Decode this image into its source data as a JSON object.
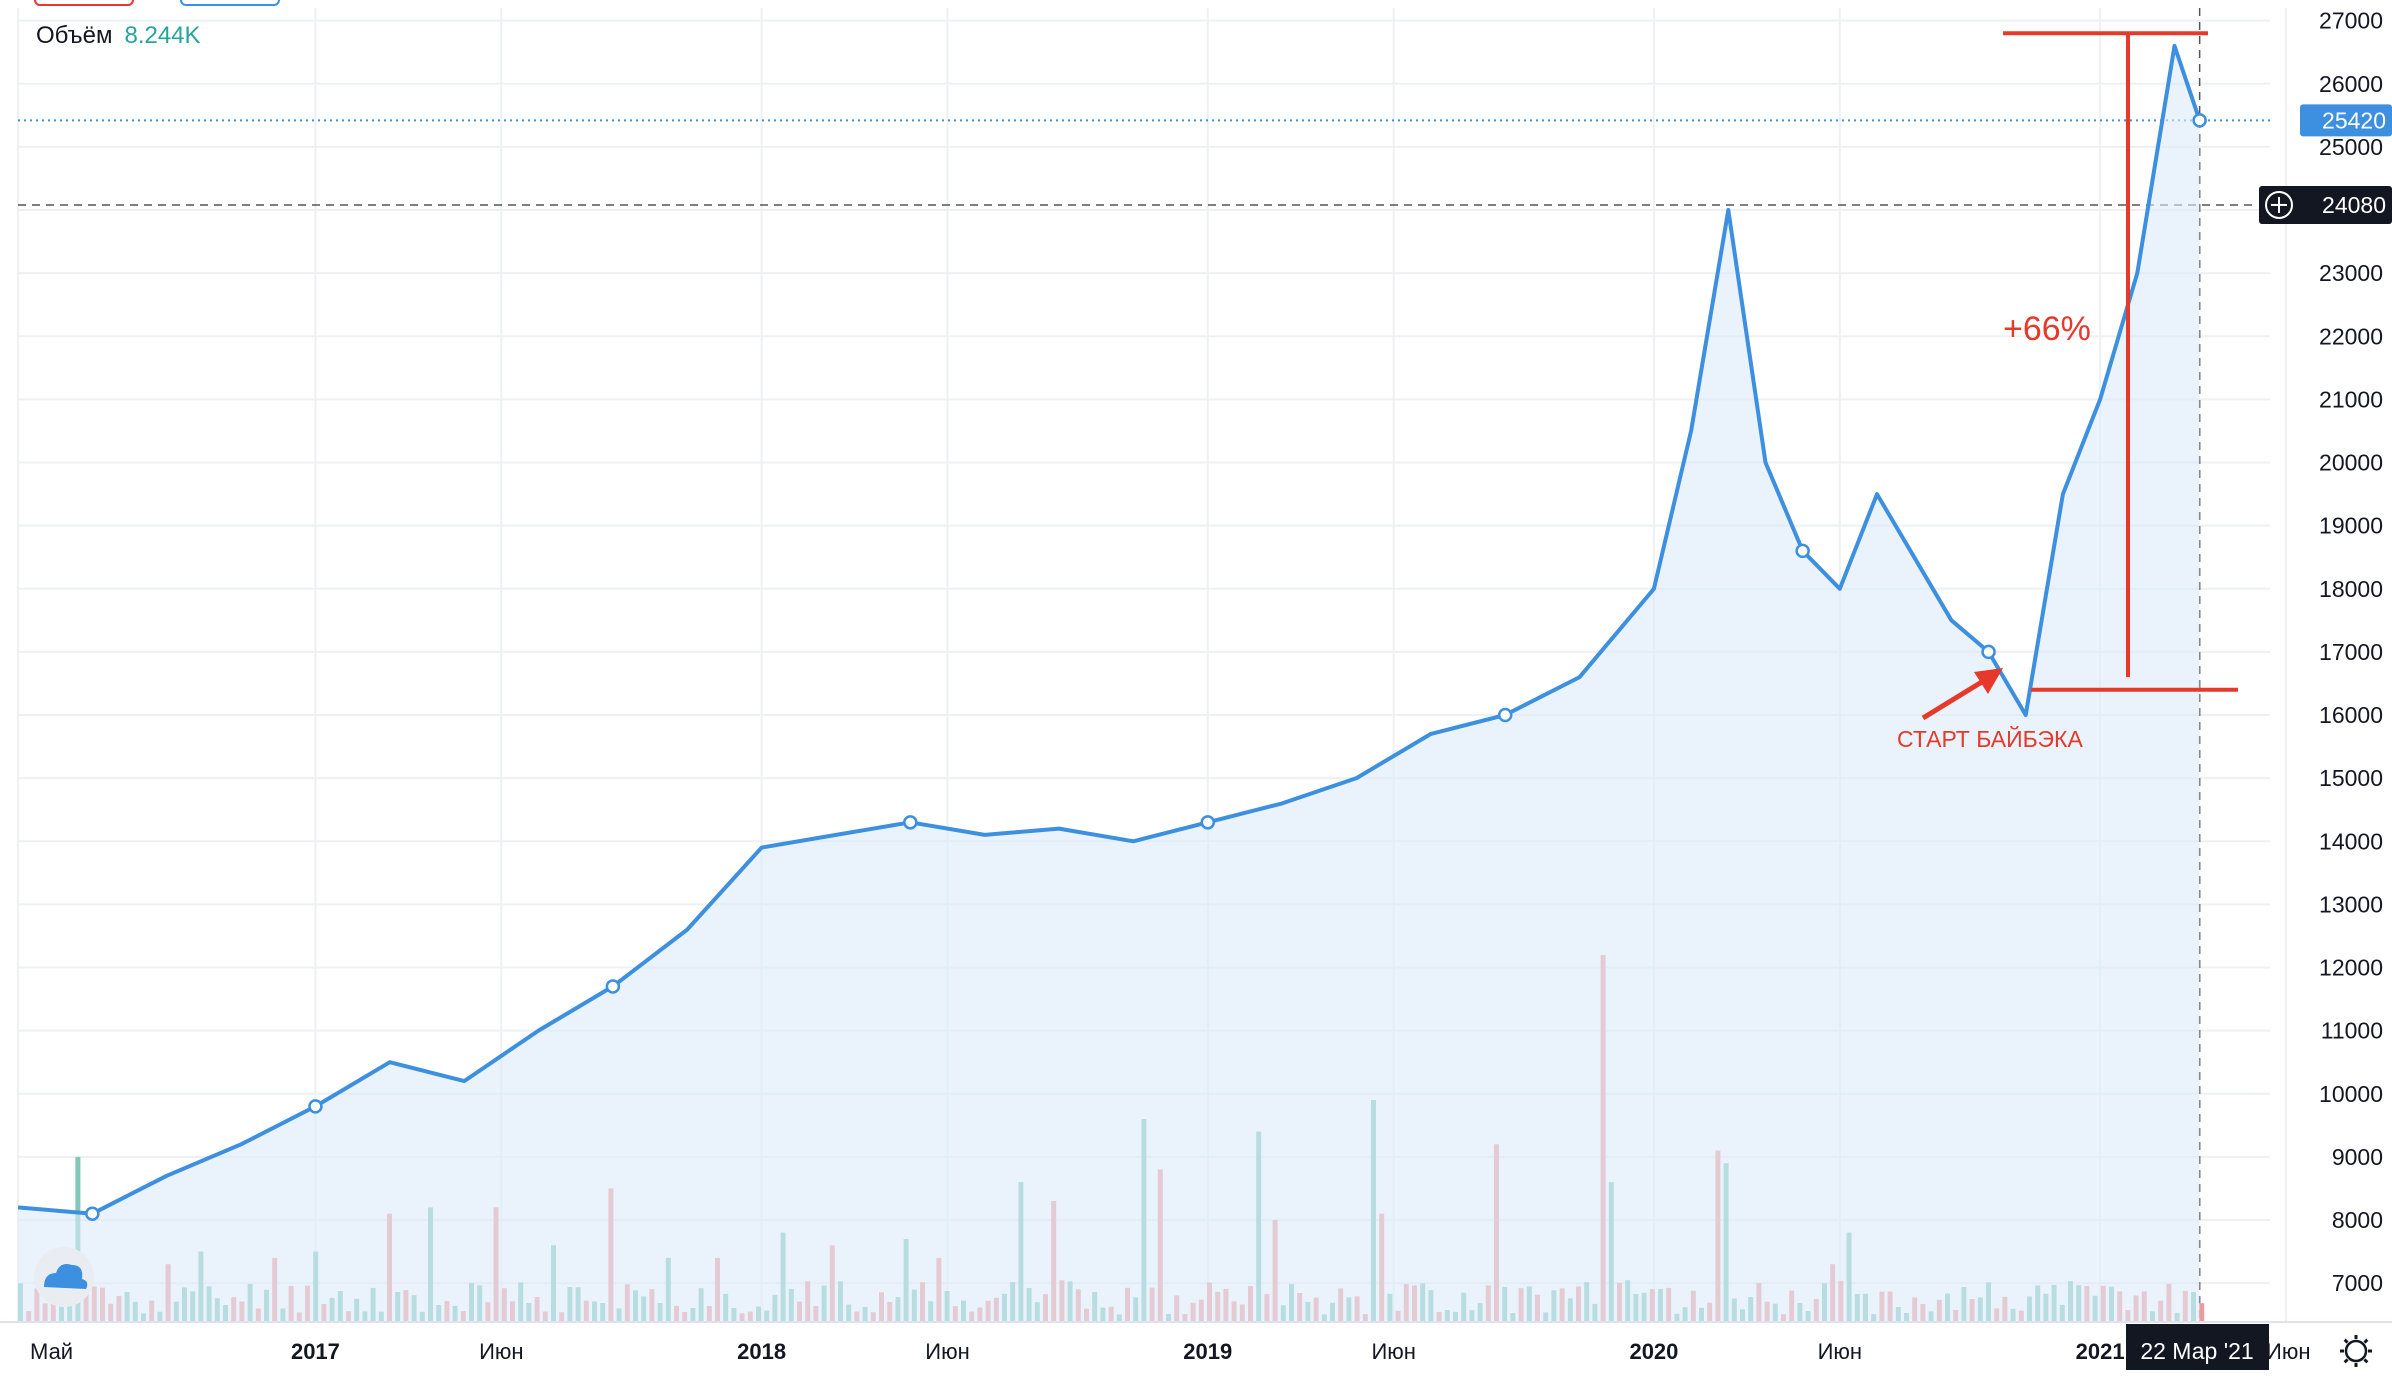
{
  "legend": {
    "volume_label": "Объём",
    "volume_value": "8.244K"
  },
  "price_tags": {
    "last_price": "25420",
    "crosshair_price": "24080"
  },
  "crosshair_date": "22 Мар '21",
  "annotations": {
    "gain_label": "+66%",
    "start_label": "СТАРТ БАЙБЭКА"
  },
  "icons": {
    "crosshair_plus": "plus-circle-icon",
    "settings": "gear-icon",
    "logo": "tradingview-cloud-icon"
  },
  "colors": {
    "line": "#3d8fe0",
    "area": "#dcebfa",
    "vol_up": "#82c7b8",
    "vol_down": "#ef9a9a",
    "annotation": "#e5392a",
    "last_tag": "#3d8fe0",
    "dark_tag": "#131722"
  },
  "chart_data": {
    "type": "area",
    "ylim": [
      6400,
      27200
    ],
    "yticks": [
      7000,
      8000,
      9000,
      10000,
      11000,
      12000,
      13000,
      14000,
      15000,
      16000,
      17000,
      18000,
      19000,
      20000,
      21000,
      22000,
      23000,
      24000,
      25000,
      26000,
      27000
    ],
    "xtick_labels": [
      "Май",
      "2017",
      "Июн",
      "2018",
      "Июн",
      "2019",
      "Июн",
      "2020",
      "Июн",
      "2021",
      "Июн"
    ],
    "x_dates": [
      "2016-05",
      "2016-07",
      "2016-09",
      "2016-11",
      "2017-01",
      "2017-03",
      "2017-05",
      "2017-07",
      "2017-09",
      "2017-11",
      "2018-01",
      "2018-03",
      "2018-05",
      "2018-07",
      "2018-09",
      "2018-11",
      "2019-01",
      "2019-03",
      "2019-05",
      "2019-07",
      "2019-09",
      "2019-11",
      "2020-01",
      "2020-02",
      "2020-03",
      "2020-04",
      "2020-05",
      "2020-06",
      "2020-07",
      "2020-08",
      "2020-09",
      "2020-10",
      "2020-11",
      "2020-12",
      "2021-01",
      "2021-02",
      "2021-03",
      "2021-03-22"
    ],
    "series": [
      {
        "values": [
          8200,
          8100,
          8700,
          9200,
          9800,
          10500,
          10200,
          11000,
          11700,
          12600,
          13900,
          14100,
          14300,
          14100,
          14200,
          14000,
          14300,
          14600,
          15000,
          15700,
          16000,
          16600,
          18000,
          20500,
          24000,
          20000,
          18600,
          18000,
          19500,
          18500,
          17500,
          17000,
          16000,
          19500,
          21000,
          23000,
          26600,
          25420
        ]
      }
    ],
    "volume_visible_range": [
      6400,
      12000
    ],
    "volume": {
      "up": [
        9000,
        7500,
        7500,
        8200,
        7600,
        7400,
        7800,
        7700,
        8600,
        9600,
        9400,
        9900,
        12100,
        8600,
        8900,
        7800
      ],
      "down": [
        7200,
        7300,
        7400,
        8100,
        8200,
        8500,
        7400,
        7600,
        7400,
        8300,
        8800,
        8000,
        8100,
        9200,
        12200,
        9100,
        7300
      ]
    },
    "annotations": {
      "start_price": 16400,
      "peak_price": 26800,
      "gain_pct": "+66%"
    }
  }
}
